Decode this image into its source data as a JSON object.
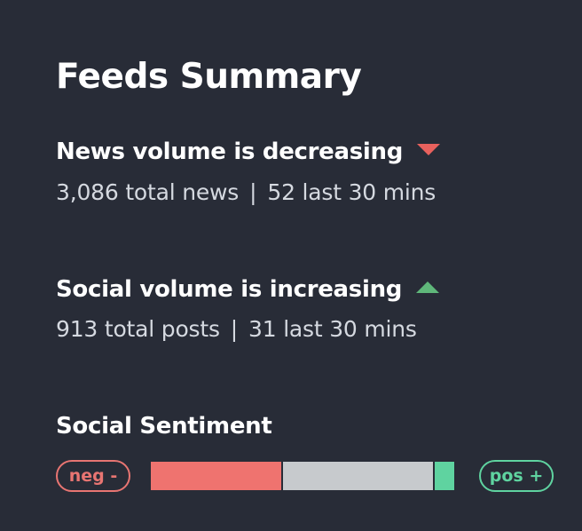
{
  "title": "Feeds Summary",
  "news": {
    "heading": "News volume is decreasing",
    "trend": "down",
    "trend_icon": "triangle-down-icon",
    "trend_color": "#e8615d",
    "total": "3,086 total news",
    "separator": "|",
    "recent": "52 last 30 mins"
  },
  "social": {
    "heading": "Social volume is increasing",
    "trend": "up",
    "trend_icon": "triangle-up-icon",
    "trend_color": "#5fb77a",
    "total": "913 total posts",
    "separator": "|",
    "recent": "31 last 30 mins"
  },
  "sentiment": {
    "heading": "Social Sentiment",
    "neg_label": "neg -",
    "pos_label": "pos +",
    "negative_fraction": 0.43,
    "neutral_fraction": 0.5,
    "positive_fraction": 0.07,
    "neg_color": "#ef736f",
    "neutral_color": "#c7cacd",
    "pos_color": "#5fd3a0"
  }
}
